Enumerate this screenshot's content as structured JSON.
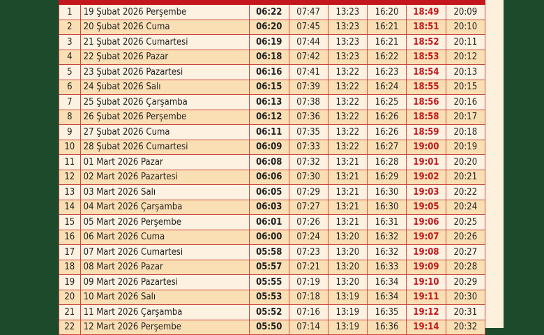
{
  "rows": [
    [
      "1",
      "19 Şubat 2026 Perşembe",
      "06:22",
      "07:47",
      "13:23",
      "16:20",
      "18:49",
      "20:09"
    ],
    [
      "2",
      "20 Şubat 2026 Cuma",
      "06:20",
      "07:45",
      "13:23",
      "16:21",
      "18:51",
      "20:10"
    ],
    [
      "3",
      "21 Şubat 2026 Cumartesi",
      "06:19",
      "07:44",
      "13:23",
      "16:21",
      "18:52",
      "20:11"
    ],
    [
      "4",
      "22 Şubat 2026 Pazar",
      "06:18",
      "07:42",
      "13:23",
      "16:22",
      "18:53",
      "20:12"
    ],
    [
      "5",
      "23 Şubat 2026 Pazartesi",
      "06:16",
      "07:41",
      "13:22",
      "16:23",
      "18:54",
      "20:13"
    ],
    [
      "6",
      "24 Şubat 2026 Salı",
      "06:15",
      "07:39",
      "13:22",
      "16:24",
      "18:55",
      "20:15"
    ],
    [
      "7",
      "25 Şubat 2026 Çarşamba",
      "06:13",
      "07:38",
      "13:22",
      "16:25",
      "18:56",
      "20:16"
    ],
    [
      "8",
      "26 Şubat 2026 Perşembe",
      "06:12",
      "07:36",
      "13:22",
      "16:26",
      "18:58",
      "20:17"
    ],
    [
      "9",
      "27 Şubat 2026 Cuma",
      "06:11",
      "07:35",
      "13:22",
      "16:26",
      "18:59",
      "20:18"
    ],
    [
      "10",
      "28 Şubat 2026 Cumartesi",
      "06:09",
      "07:33",
      "13:22",
      "16:27",
      "19:00",
      "20:19"
    ],
    [
      "11",
      "01 Mart 2026 Pazar",
      "06:08",
      "07:32",
      "13:21",
      "16:28",
      "19:01",
      "20:20"
    ],
    [
      "12",
      "02 Mart 2026 Pazartesi",
      "06:06",
      "07:30",
      "13:21",
      "16:29",
      "19:02",
      "20:21"
    ],
    [
      "13",
      "03 Mart 2026 Salı",
      "06:05",
      "07:29",
      "13:21",
      "16:30",
      "19:03",
      "20:22"
    ],
    [
      "14",
      "04 Mart 2026 Çarşamba",
      "06:03",
      "07:27",
      "13:21",
      "16:30",
      "19:05",
      "20:24"
    ],
    [
      "15",
      "05 Mart 2026 Perşembe",
      "06:01",
      "07:26",
      "13:21",
      "16:31",
      "19:06",
      "20:25"
    ],
    [
      "16",
      "06 Mart 2026 Cuma",
      "06:00",
      "07:24",
      "13:20",
      "16:32",
      "19:07",
      "20:26"
    ],
    [
      "17",
      "07 Mart 2026 Cumartesi",
      "05:58",
      "07:23",
      "13:20",
      "16:32",
      "19:08",
      "20:27"
    ],
    [
      "18",
      "08 Mart 2026 Pazar",
      "05:57",
      "07:21",
      "13:20",
      "16:33",
      "19:09",
      "20:28"
    ],
    [
      "19",
      "09 Mart 2026 Pazartesi",
      "05:55",
      "07:19",
      "13:20",
      "16:34",
      "19:10",
      "20:29"
    ],
    [
      "20",
      "10 Mart 2026 Salı",
      "05:53",
      "07:18",
      "13:19",
      "16:34",
      "19:11",
      "20:30"
    ],
    [
      "21",
      "11 Mart 2026 Çarşamba",
      "05:52",
      "07:16",
      "13:19",
      "16:35",
      "19:12",
      "20:31"
    ],
    [
      "22",
      "12 Mart 2026 Perşembe",
      "05:50",
      "07:14",
      "13:19",
      "16:36",
      "19:14",
      "20:32"
    ]
  ]
}
